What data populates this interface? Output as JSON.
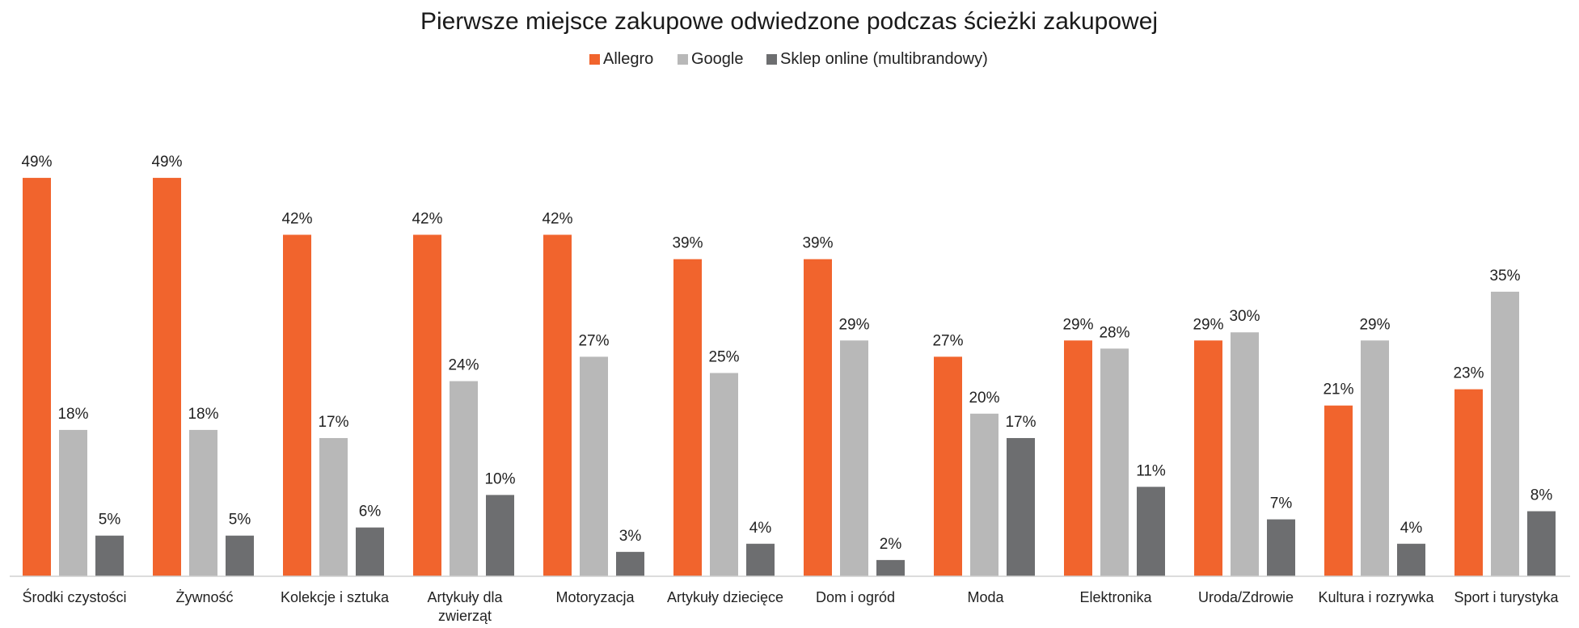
{
  "chart_data": {
    "type": "bar",
    "title": "Pierwsze miejsce zakupowe odwiedzone podczas ścieżki zakupowej",
    "xlabel": "",
    "ylabel": "",
    "ylim": [
      0,
      55
    ],
    "value_suffix": "%",
    "grid": false,
    "legend_position": "top-center",
    "categories": [
      "Środki czystości",
      "Żywność",
      "Kolekcje i sztuka",
      "Artykuły dla zwierząt",
      "Motoryzacja",
      "Artykuły dziecięce",
      "Dom i ogród",
      "Moda",
      "Elektronika",
      "Uroda/Zdrowie",
      "Kultura i rozrywka",
      "Sport i turystyka"
    ],
    "series": [
      {
        "name": "Allegro",
        "color": "#F1642D",
        "values": [
          49,
          49,
          42,
          42,
          42,
          39,
          39,
          27,
          29,
          29,
          21,
          23
        ]
      },
      {
        "name": "Google",
        "color": "#B8B8B8",
        "values": [
          18,
          18,
          17,
          24,
          27,
          25,
          29,
          20,
          28,
          30,
          29,
          35
        ]
      },
      {
        "name": "Sklep online (multibrandowy)",
        "color": "#6D6E70",
        "values": [
          5,
          5,
          6,
          10,
          3,
          4,
          2,
          17,
          11,
          7,
          4,
          8
        ]
      }
    ]
  }
}
